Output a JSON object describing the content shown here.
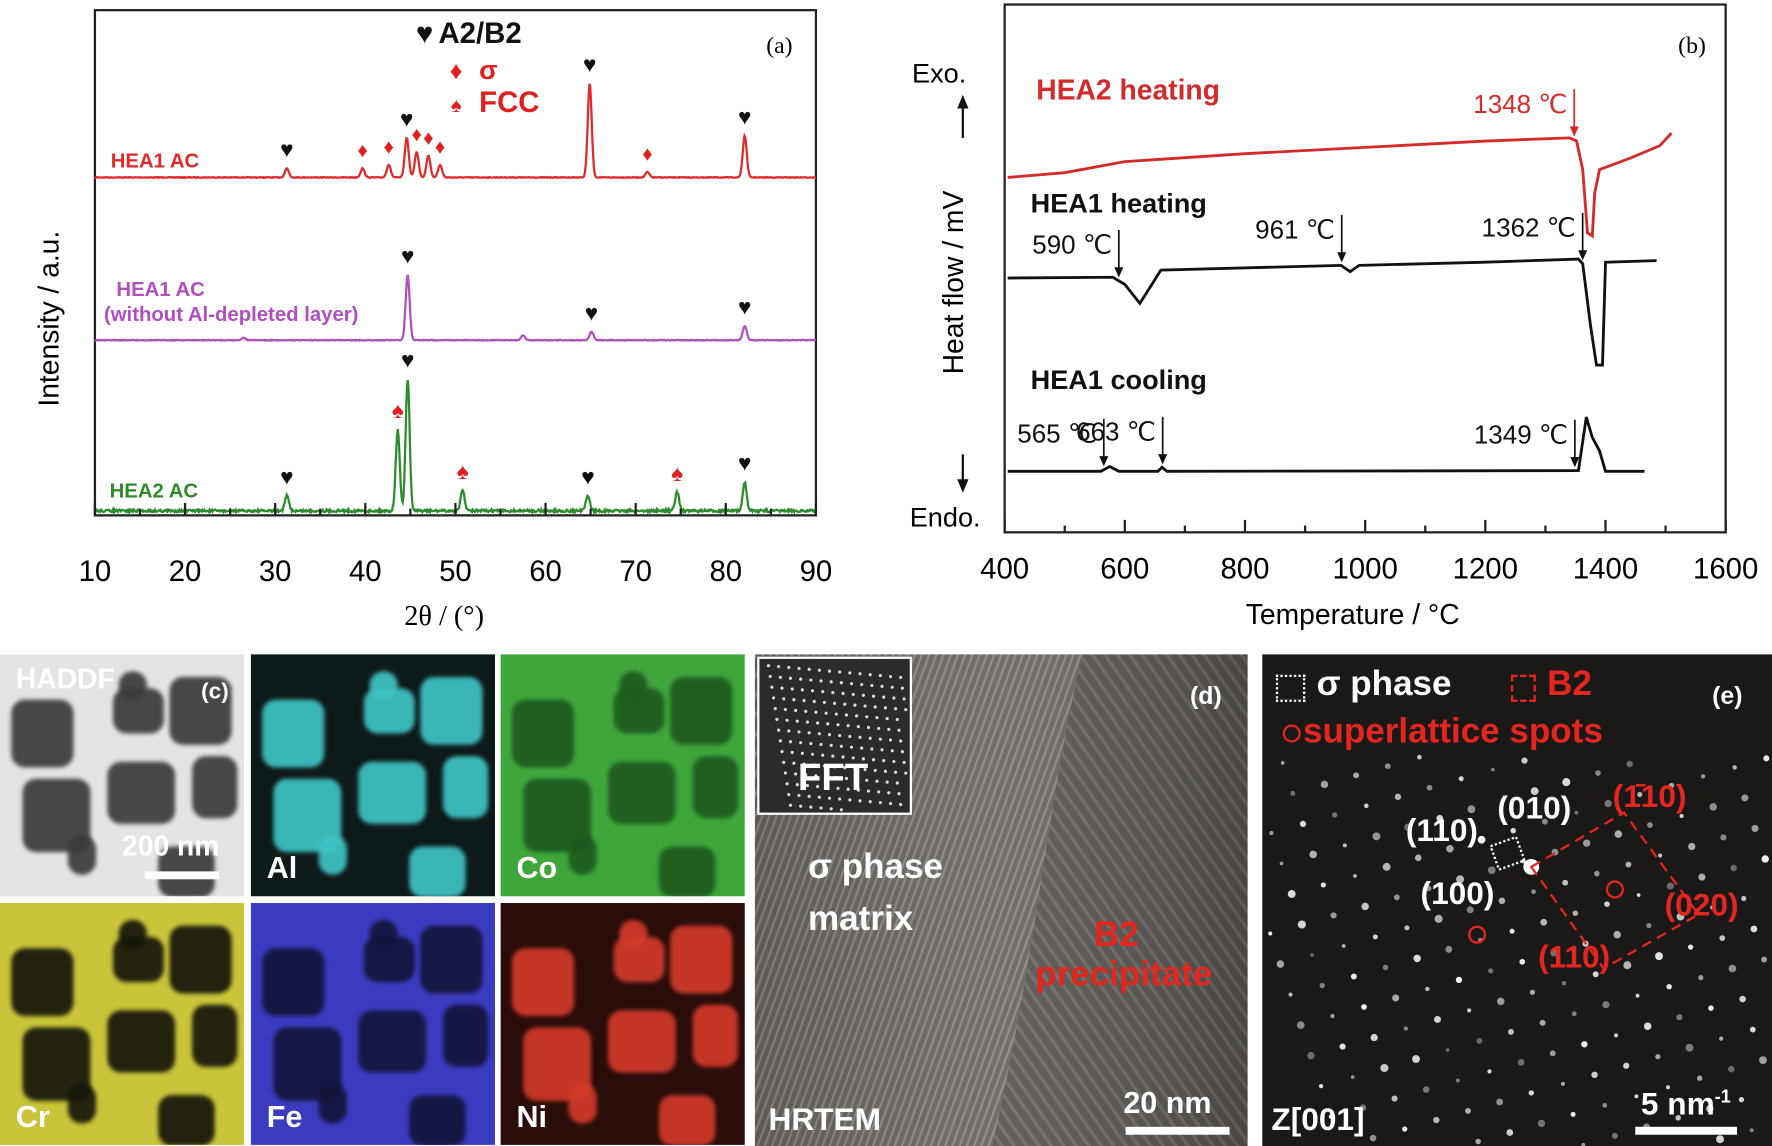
{
  "chart_data": [
    {
      "panel": "(a)",
      "type": "line",
      "title": "",
      "xlabel": "2θ / (°)",
      "ylabel": "Intensity / a.u.",
      "xlim": [
        10,
        90
      ],
      "xticks": [
        10,
        20,
        30,
        40,
        50,
        60,
        70,
        80,
        90
      ],
      "grid": false,
      "legend": {
        "placement": "top-center",
        "entries": [
          {
            "symbol": "♥",
            "label": "A2/B2",
            "color": "#111111"
          },
          {
            "symbol": "♦",
            "label": "σ",
            "color": "#e02020"
          },
          {
            "symbol": "♠",
            "label": "FCC",
            "color": "#e02020"
          }
        ]
      },
      "series": [
        {
          "name": "HEA1 AC",
          "color": "#e02a2a",
          "peaks": [
            {
              "x": 31.3,
              "h": 0.05,
              "marker": "A2/B2"
            },
            {
              "x": 39.7,
              "h": 0.05,
              "marker": "σ"
            },
            {
              "x": 42.6,
              "h": 0.07,
              "marker": "σ"
            },
            {
              "x": 44.6,
              "h": 0.22,
              "marker": "A2/B2"
            },
            {
              "x": 45.7,
              "h": 0.14,
              "marker": "σ"
            },
            {
              "x": 47.0,
              "h": 0.12,
              "marker": "σ"
            },
            {
              "x": 48.3,
              "h": 0.07,
              "marker": "σ"
            },
            {
              "x": 64.9,
              "h": 0.52,
              "marker": "A2/B2"
            },
            {
              "x": 71.3,
              "h": 0.03,
              "marker": "σ"
            },
            {
              "x": 82.1,
              "h": 0.23,
              "marker": "A2/B2"
            }
          ]
        },
        {
          "name": "HEA1 AC (without Al-depleted layer)",
          "color": "#b04fbf",
          "peaks": [
            {
              "x": 26.5,
              "h": 0.02,
              "marker": null
            },
            {
              "x": 44.7,
              "h": 0.55,
              "marker": "A2/B2"
            },
            {
              "x": 57.5,
              "h": 0.04,
              "marker": null
            },
            {
              "x": 65.1,
              "h": 0.07,
              "marker": "A2/B2"
            },
            {
              "x": 82.1,
              "h": 0.12,
              "marker": "A2/B2"
            }
          ]
        },
        {
          "name": "HEA2 AC",
          "color": "#2e8b2e",
          "peaks": [
            {
              "x": 31.3,
              "h": 0.09,
              "marker": "A2/B2"
            },
            {
              "x": 43.6,
              "h": 0.48,
              "marker": "FCC"
            },
            {
              "x": 44.7,
              "h": 0.78,
              "marker": "A2/B2"
            },
            {
              "x": 50.8,
              "h": 0.12,
              "marker": "FCC"
            },
            {
              "x": 64.7,
              "h": 0.09,
              "marker": "A2/B2"
            },
            {
              "x": 74.6,
              "h": 0.11,
              "marker": "FCC"
            },
            {
              "x": 82.1,
              "h": 0.17,
              "marker": "A2/B2"
            }
          ]
        }
      ]
    },
    {
      "panel": "(b)",
      "type": "line",
      "title": "",
      "xlabel": "Temperature / °C",
      "ylabel": "Heat flow / mV",
      "xlim": [
        400,
        1600
      ],
      "xticks": [
        400,
        600,
        800,
        1000,
        1200,
        1400,
        1600
      ],
      "grid": false,
      "y_direction_labels": {
        "top": "Exo.",
        "bottom": "Endo."
      },
      "series": [
        {
          "name": "HEA2 heating",
          "color": "#d42a2a",
          "points": [
            [
              405,
              0.0
            ],
            [
              500,
              0.3
            ],
            [
              600,
              1.0
            ],
            [
              800,
              1.5
            ],
            [
              1000,
              1.9
            ],
            [
              1200,
              2.3
            ],
            [
              1340,
              2.5
            ],
            [
              1352,
              2.3
            ],
            [
              1362,
              0.5
            ],
            [
              1370,
              -3.5
            ],
            [
              1378,
              -3.7
            ],
            [
              1382,
              -1.0
            ],
            [
              1390,
              0.5
            ],
            [
              1440,
              1.2
            ],
            [
              1490,
              2.0
            ],
            [
              1510,
              2.8
            ]
          ],
          "annotations": [
            {
              "x": 1348,
              "label": "1348 ℃"
            }
          ]
        },
        {
          "name": "HEA1 heating",
          "color": "#111111",
          "points": [
            [
              405,
              0.0
            ],
            [
              580,
              0.05
            ],
            [
              600,
              -0.4
            ],
            [
              625,
              -1.6
            ],
            [
              645,
              -0.4
            ],
            [
              660,
              0.5
            ],
            [
              960,
              0.8
            ],
            [
              975,
              0.4
            ],
            [
              990,
              0.8
            ],
            [
              1200,
              1.0
            ],
            [
              1355,
              1.2
            ],
            [
              1362,
              0.9
            ],
            [
              1375,
              -3.0
            ],
            [
              1385,
              -5.5
            ],
            [
              1395,
              -5.5
            ],
            [
              1400,
              1.0
            ],
            [
              1485,
              1.1
            ]
          ],
          "annotations": [
            {
              "x": 590,
              "label": "590 ℃"
            },
            {
              "x": 961,
              "label": "961 ℃"
            },
            {
              "x": 1362,
              "label": "1362 ℃"
            }
          ]
        },
        {
          "name": "HEA1 cooling",
          "color": "#111111",
          "points": [
            [
              405,
              0.0
            ],
            [
              560,
              0.0
            ],
            [
              575,
              0.35
            ],
            [
              590,
              0.0
            ],
            [
              655,
              0.0
            ],
            [
              662,
              0.3
            ],
            [
              670,
              0.0
            ],
            [
              1355,
              0.05
            ],
            [
              1368,
              4.0
            ],
            [
              1378,
              2.5
            ],
            [
              1390,
              1.5
            ],
            [
              1400,
              0.0
            ],
            [
              1465,
              0.0
            ]
          ],
          "annotations": [
            {
              "x": 565,
              "label": "565 ℃"
            },
            {
              "x": 663,
              "label": "663 ℃"
            },
            {
              "x": 1349,
              "label": "1349 ℃"
            }
          ]
        }
      ]
    }
  ],
  "panels": {
    "a": {
      "tag": "(a)"
    },
    "b": {
      "tag": "(b)"
    },
    "c": {
      "tag": "(c)",
      "maps": [
        {
          "label": "HADDF",
          "scale_bar": "200 nm",
          "matrix": "#e4e4e4",
          "particle": "#3a3a3a"
        },
        {
          "label": "Al",
          "matrix": "#0e1a1a",
          "particle": "#3ec4c4"
        },
        {
          "label": "Co",
          "matrix": "#3fa63c",
          "particle": "#1d5a1f"
        },
        {
          "label": "Cr",
          "matrix": "#c9c43a",
          "particle": "#15150a"
        },
        {
          "label": "Fe",
          "matrix": "#3a3cc0",
          "particle": "#14143a"
        },
        {
          "label": "Ni",
          "matrix": "#2a0d0a",
          "particle": "#d33a2a"
        }
      ]
    },
    "d": {
      "tag": "(d)",
      "inset_label": "FFT",
      "matrix_label_line1": "σ phase",
      "matrix_label_line2": "matrix",
      "precipitate_line1": "B2",
      "precipitate_line2": "precipitate",
      "mode": "HRTEM",
      "scale_bar": "20 nm"
    },
    "e": {
      "tag": "(e)",
      "legend_sigma": "σ phase",
      "legend_b2": "B2",
      "legend_super": "superlattice spots",
      "idx_110w": "(110)",
      "idx_010w": "(010)",
      "idx_100w": "(100)",
      "idx_110bar": "(1̄10)",
      "idx_020": "(020)",
      "idx_110r": "(110)",
      "zone": "Z[001]",
      "scale_bar": "5 nm",
      "scale_sup": "-1"
    }
  }
}
